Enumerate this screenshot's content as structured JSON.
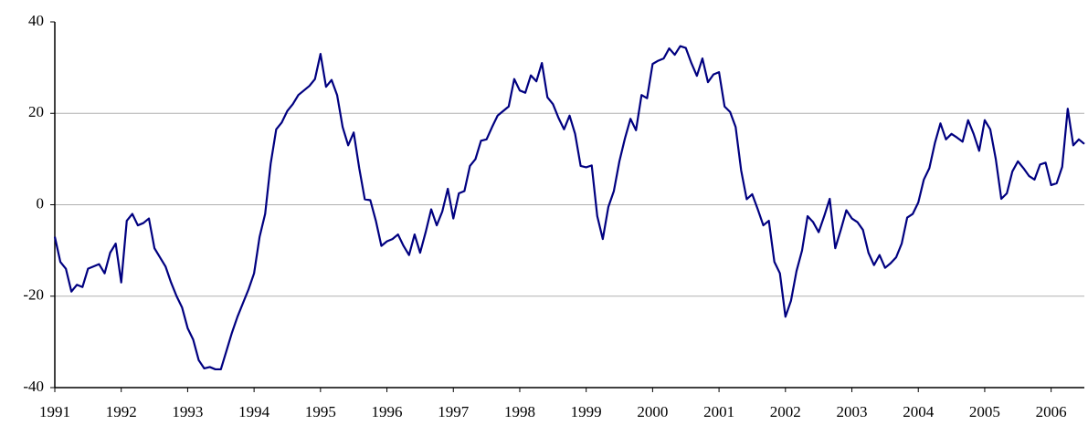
{
  "chart_data": {
    "type": "line",
    "categories": [
      "1991",
      null,
      null,
      null,
      null,
      null,
      null,
      null,
      null,
      null,
      null,
      null,
      "1992",
      null,
      null,
      null,
      null,
      null,
      null,
      null,
      null,
      null,
      null,
      null,
      "1993",
      null,
      null,
      null,
      null,
      null,
      null,
      null,
      null,
      null,
      null,
      null,
      "1994",
      null,
      null,
      null,
      null,
      null,
      null,
      null,
      null,
      null,
      null,
      null,
      "1995",
      null,
      null,
      null,
      null,
      null,
      null,
      null,
      null,
      null,
      null,
      null,
      "1996",
      null,
      null,
      null,
      null,
      null,
      null,
      null,
      null,
      null,
      null,
      null,
      "1997",
      null,
      null,
      null,
      null,
      null,
      null,
      null,
      null,
      null,
      null,
      null,
      "1998",
      null,
      null,
      null,
      null,
      null,
      null,
      null,
      null,
      null,
      null,
      null,
      "1999",
      null,
      null,
      null,
      null,
      null,
      null,
      null,
      null,
      null,
      null,
      null,
      "2000",
      null,
      null,
      null,
      null,
      null,
      null,
      null,
      null,
      null,
      null,
      null,
      "2001",
      null,
      null,
      null,
      null,
      null,
      null,
      null,
      null,
      null,
      null,
      null,
      "2002",
      null,
      null,
      null,
      null,
      null,
      null,
      null,
      null,
      null,
      null,
      null,
      "2003",
      null,
      null,
      null,
      null,
      null,
      null,
      null,
      null,
      null,
      null,
      null,
      "2004",
      null,
      null,
      null,
      null,
      null,
      null,
      null,
      null,
      null,
      null,
      null,
      "2005",
      null,
      null,
      null,
      null,
      null,
      null,
      null,
      null,
      null,
      null,
      null,
      "2006",
      null,
      null,
      null,
      null,
      null,
      null
    ],
    "values": [
      -7,
      -12.5,
      -14,
      -19,
      -17.5,
      -18,
      -14,
      -13.5,
      -13,
      -15,
      -10.5,
      -8.5,
      -17,
      -3.5,
      -2,
      -4.5,
      -4,
      -3,
      -9.5,
      -11.5,
      -13.5,
      -17,
      -20,
      -22.5,
      -27,
      -29.5,
      -34,
      -35.8,
      -35.5,
      -36,
      -36,
      -32,
      -28,
      -24.5,
      -21.5,
      -18.5,
      -15,
      -7,
      -2,
      9,
      16.5,
      18,
      20.5,
      22,
      24,
      25,
      26,
      27.5,
      33,
      25.8,
      27.3,
      24,
      17,
      13,
      15.8,
      8,
      1.2,
      1,
      -3.5,
      -9,
      -8,
      -7.5,
      -6.5,
      -9,
      -11,
      -6.5,
      -10.5,
      -6,
      -1,
      -4.5,
      -1.5,
      3.5,
      -3,
      2.5,
      3,
      8.5,
      10,
      14,
      14.3,
      17,
      19.5,
      20.5,
      21.5,
      27.5,
      25,
      24.5,
      28.3,
      27,
      31,
      23.5,
      22,
      19,
      16.5,
      19.5,
      15.5,
      8.5,
      8.2,
      8.6,
      -2.5,
      -7.5,
      -0.5,
      3,
      9.5,
      14.5,
      18.8,
      16.3,
      24,
      23.3,
      30.8,
      31.5,
      32,
      34.2,
      32.8,
      34.7,
      34.3,
      31,
      28.2,
      32,
      26.8,
      28.5,
      29,
      21.5,
      20.3,
      17,
      7.5,
      1.2,
      2.3,
      -1,
      -4.5,
      -3.5,
      -12.5,
      -15,
      -24.5,
      -21,
      -14.5,
      -10,
      -2.5,
      -3.8,
      -6,
      -2.5,
      1.3,
      -9.5,
      -5.5,
      -1.2,
      -3,
      -3.8,
      -5.5,
      -10.5,
      -13.2,
      -11,
      -13.8,
      -12.8,
      -11.5,
      -8.5,
      -2.8,
      -2,
      0.5,
      5.5,
      8,
      13.5,
      17.8,
      14.3,
      15.5,
      14.7,
      13.8,
      18.5,
      15.5,
      11.8,
      18.5,
      16.5,
      10,
      1.3,
      2.5,
      7.3,
      9.5,
      8,
      6.3,
      5.5,
      8.8,
      9.2,
      4.3,
      4.7,
      8.3,
      21,
      13,
      14.3,
      13.3
    ],
    "color": "#000080",
    "ylim": [
      -40,
      40
    ],
    "yticks": [
      -40,
      -20,
      0,
      20,
      40
    ],
    "grid": true
  }
}
